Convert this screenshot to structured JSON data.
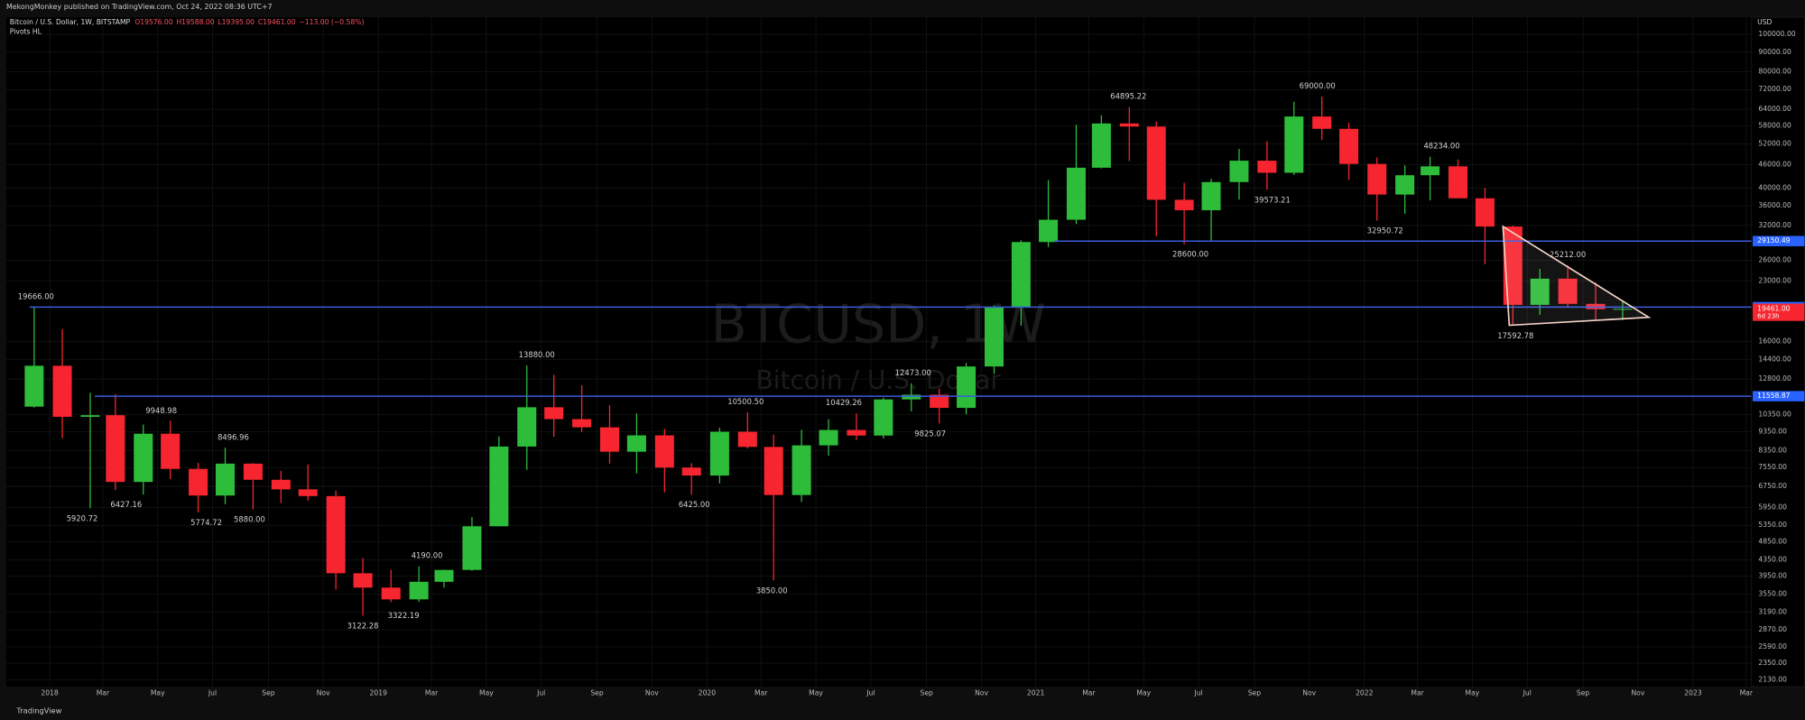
{
  "header": {
    "publisher": "MekongMonkey published on TradingView.com, Oct 24, 2022 08:36 UTC+7",
    "footer": "TradingView"
  },
  "chart_data": {
    "type": "candlestick",
    "title": "Bitcoin / U.S. Dollar, 1W, BITSTAMP",
    "ohlc_legend": [
      "O19576.00",
      "H19588.00",
      "L19395.00",
      "C19461.00",
      "−113.00 (−0.58%)"
    ],
    "indicator": "Pivots HL",
    "watermark": "BTCUSD, 1W",
    "watermark_subtitle": "Bitcoin / U.S. Dollar",
    "y_axis_label": "USD",
    "log_scale": true,
    "grid": true,
    "up_color": "#2ebd3a",
    "down_color": "#f7252f",
    "xlim": [
      "2017-11-14",
      "2023-03-07"
    ],
    "xticks": [
      {
        "value": "2018-01-01",
        "label": "2018"
      },
      {
        "value": "2018-03-01",
        "label": "Mar"
      },
      {
        "value": "2018-05-01",
        "label": "May"
      },
      {
        "value": "2018-07-01",
        "label": "Jul"
      },
      {
        "value": "2018-09-01",
        "label": "Sep"
      },
      {
        "value": "2018-11-01",
        "label": "Nov"
      },
      {
        "value": "2019-01-01",
        "label": "2019"
      },
      {
        "value": "2019-03-01",
        "label": "Mar"
      },
      {
        "value": "2019-05-01",
        "label": "May"
      },
      {
        "value": "2019-07-01",
        "label": "Jul"
      },
      {
        "value": "2019-09-01",
        "label": "Sep"
      },
      {
        "value": "2019-11-01",
        "label": "Nov"
      },
      {
        "value": "2020-01-01",
        "label": "2020"
      },
      {
        "value": "2020-03-01",
        "label": "Mar"
      },
      {
        "value": "2020-05-01",
        "label": "May"
      },
      {
        "value": "2020-07-01",
        "label": "Jul"
      },
      {
        "value": "2020-09-01",
        "label": "Sep"
      },
      {
        "value": "2020-11-01",
        "label": "Nov"
      },
      {
        "value": "2021-01-01",
        "label": "2021"
      },
      {
        "value": "2021-03-01",
        "label": "Mar"
      },
      {
        "value": "2021-05-01",
        "label": "May"
      },
      {
        "value": "2021-07-01",
        "label": "Jul"
      },
      {
        "value": "2021-09-01",
        "label": "Sep"
      },
      {
        "value": "2021-11-01",
        "label": "Nov"
      },
      {
        "value": "2022-01-01",
        "label": "2022"
      },
      {
        "value": "2022-03-01",
        "label": "Mar"
      },
      {
        "value": "2022-05-01",
        "label": "May"
      },
      {
        "value": "2022-07-01",
        "label": "Jul"
      },
      {
        "value": "2022-09-01",
        "label": "Sep"
      },
      {
        "value": "2022-11-01",
        "label": "Nov"
      },
      {
        "value": "2023-01-01",
        "label": "2023"
      },
      {
        "value": "2023-03-01",
        "label": "Mar"
      }
    ],
    "ylim": [
      2044,
      110800
    ],
    "yticks": [
      {
        "value": 100000,
        "label": "100000.00"
      },
      {
        "value": 90000,
        "label": "90000.00"
      },
      {
        "value": 80000,
        "label": "80000.00"
      },
      {
        "value": 72000,
        "label": "72000.00"
      },
      {
        "value": 64000,
        "label": "64000.00"
      },
      {
        "value": 58000,
        "label": "58000.00"
      },
      {
        "value": 52000,
        "label": "52000.00"
      },
      {
        "value": 46000,
        "label": "46000.00"
      },
      {
        "value": 40000,
        "label": "40000.00"
      },
      {
        "value": 36000,
        "label": "36000.00"
      },
      {
        "value": 32000,
        "label": "32000.00"
      },
      {
        "value": 26000,
        "label": "26000.00"
      },
      {
        "value": 23000,
        "label": "23000.00"
      },
      {
        "value": 16000,
        "label": "16000.00"
      },
      {
        "value": 14400,
        "label": "14400.00"
      },
      {
        "value": 12800,
        "label": "12800.00"
      },
      {
        "value": 10350,
        "label": "10350.00"
      },
      {
        "value": 9350,
        "label": "9350.00"
      },
      {
        "value": 8350,
        "label": "8350.00"
      },
      {
        "value": 7550,
        "label": "7550.00"
      },
      {
        "value": 6750,
        "label": "6750.00"
      },
      {
        "value": 5950,
        "label": "5950.00"
      },
      {
        "value": 5350,
        "label": "5350.00"
      },
      {
        "value": 4850,
        "label": "4850.00"
      },
      {
        "value": 4350,
        "label": "4350.00"
      },
      {
        "value": 3950,
        "label": "3950.00"
      },
      {
        "value": 3550,
        "label": "3550.00"
      },
      {
        "value": 3190,
        "label": "3190.00"
      },
      {
        "value": 2870,
        "label": "2870.00"
      },
      {
        "value": 2590,
        "label": "2590.00"
      },
      {
        "value": 2350,
        "label": "2350.00"
      },
      {
        "value": 2130,
        "label": "2130.00"
      }
    ],
    "x": [
      "2017-12",
      "2018-01",
      "2018-02",
      "2018-03",
      "2018-04",
      "2018-05",
      "2018-06",
      "2018-07",
      "2018-08",
      "2018-09",
      "2018-10",
      "2018-11",
      "2018-12",
      "2019-01",
      "2019-02",
      "2019-03",
      "2019-04",
      "2019-05",
      "2019-06",
      "2019-07",
      "2019-08",
      "2019-09",
      "2019-10",
      "2019-11",
      "2019-12",
      "2020-01",
      "2020-02",
      "2020-03",
      "2020-04",
      "2020-05",
      "2020-06",
      "2020-07",
      "2020-08",
      "2020-09",
      "2020-10",
      "2020-11",
      "2020-12",
      "2021-01",
      "2021-02",
      "2021-03",
      "2021-04",
      "2021-05",
      "2021-06",
      "2021-07",
      "2021-08",
      "2021-09",
      "2021-10",
      "2021-11",
      "2021-12",
      "2022-01",
      "2022-02",
      "2022-03",
      "2022-04",
      "2022-05",
      "2022-06",
      "2022-07",
      "2022-08",
      "2022-09",
      "2022-10"
    ],
    "open": [
      10860,
      13860,
      10220,
      10320,
      6930,
      9240,
      7490,
      6390,
      7730,
      7020,
      6630,
      6370,
      4020,
      3690,
      3440,
      3820,
      4100,
      5320,
      8560,
      10820,
      10080,
      9600,
      8300,
      9150,
      7550,
      7200,
      9350,
      8540,
      6410,
      8620,
      9450,
      9140,
      11340,
      11660,
      10780,
      13800,
      19700,
      28990,
      33110,
      45160,
      58800,
      57720,
      37300,
      35040,
      41460,
      47100,
      43820,
      61300,
      56950,
      46200,
      38480,
      43180,
      45530,
      37630,
      31790,
      19930,
      23300,
      20050,
      19420
    ],
    "high": [
      19666,
      17250,
      11790,
      11700,
      9760,
      9990,
      7770,
      8500,
      7750,
      7400,
      7690,
      6580,
      4400,
      4100,
      4190,
      4110,
      5620,
      9090,
      13880,
      13150,
      12330,
      10950,
      10430,
      9510,
      7750,
      9570,
      10500,
      9190,
      9460,
      10080,
      10430,
      11450,
      12473,
      12090,
      14100,
      19900,
      29300,
      41950,
      58350,
      61790,
      64895,
      59500,
      41300,
      42300,
      50500,
      52900,
      66900,
      69000,
      59050,
      47990,
      45800,
      48234,
      47440,
      39980,
      31980,
      24680,
      25212,
      22790,
      20480
    ],
    "low": [
      10800,
      9000,
      5920,
      6600,
      6430,
      7050,
      5780,
      6070,
      5880,
      6110,
      6200,
      3650,
      3122,
      3380,
      3390,
      3690,
      4080,
      5330,
      7450,
      9070,
      9330,
      7730,
      7300,
      6510,
      6425,
      6870,
      8460,
      3850,
      6150,
      8100,
      8900,
      8980,
      10550,
      9825,
      10380,
      13200,
      17600,
      28130,
      32300,
      45000,
      47000,
      30000,
      28600,
      29280,
      37330,
      39573,
      43280,
      53250,
      42000,
      32950,
      34320,
      37160,
      37700,
      25400,
      17592,
      18780,
      19600,
      18150,
      18190
    ],
    "close": [
      13860,
      10220,
      10320,
      6930,
      9240,
      7490,
      6390,
      7730,
      7020,
      6630,
      6370,
      4020,
      3690,
      3440,
      3820,
      4100,
      5320,
      8560,
      10820,
      10080,
      9600,
      8300,
      9150,
      7550,
      7200,
      9350,
      8540,
      6410,
      8620,
      9450,
      9140,
      11340,
      11660,
      10780,
      13800,
      19700,
      28990,
      33110,
      45160,
      58800,
      57720,
      37300,
      35040,
      41460,
      47100,
      43820,
      61300,
      56950,
      46200,
      38480,
      43180,
      45530,
      37630,
      31790,
      19930,
      23300,
      20050,
      19420,
      19461
    ],
    "pivots": [
      {
        "x": "2017-12-17",
        "value": 19666,
        "label": "19666.00",
        "kind": "high"
      },
      {
        "x": "2018-02-06",
        "value": 5920.72,
        "label": "5920.72",
        "kind": "low"
      },
      {
        "x": "2018-05-05",
        "value": 9948.98,
        "label": "9948.98",
        "kind": "high"
      },
      {
        "x": "2018-03-27",
        "value": 6427.16,
        "label": "6427.16",
        "kind": "low"
      },
      {
        "x": "2018-07-24",
        "value": 8496.96,
        "label": "8496.96",
        "kind": "high"
      },
      {
        "x": "2018-06-24",
        "value": 5774.72,
        "label": "5774.72",
        "kind": "low"
      },
      {
        "x": "2018-08-11",
        "value": 5880,
        "label": "5880.00",
        "kind": "low"
      },
      {
        "x": "2018-12-15",
        "value": 3122.28,
        "label": "3122.28",
        "kind": "low"
      },
      {
        "x": "2019-02-24",
        "value": 4190,
        "label": "4190.00",
        "kind": "high"
      },
      {
        "x": "2019-01-29",
        "value": 3322.19,
        "label": "3322.19",
        "kind": "low"
      },
      {
        "x": "2019-06-26",
        "value": 13880,
        "label": "13880.00",
        "kind": "high"
      },
      {
        "x": "2020-02-13",
        "value": 10500.5,
        "label": "10500.50",
        "kind": "high"
      },
      {
        "x": "2019-12-18",
        "value": 6425,
        "label": "6425.00",
        "kind": "low"
      },
      {
        "x": "2020-03-13",
        "value": 3850,
        "label": "3850.00",
        "kind": "low"
      },
      {
        "x": "2020-06-01",
        "value": 10429.26,
        "label": "10429.26",
        "kind": "high"
      },
      {
        "x": "2020-08-17",
        "value": 12473,
        "label": "12473.00",
        "kind": "high"
      },
      {
        "x": "2020-09-05",
        "value": 9825.07,
        "label": "9825.07",
        "kind": "low"
      },
      {
        "x": "2021-04-14",
        "value": 64895.22,
        "label": "64895.22",
        "kind": "high"
      },
      {
        "x": "2021-06-22",
        "value": 28600,
        "label": "28600.00",
        "kind": "low"
      },
      {
        "x": "2021-09-21",
        "value": 39573.21,
        "label": "39573.21",
        "kind": "low"
      },
      {
        "x": "2021-11-10",
        "value": 69000,
        "label": "69000.00",
        "kind": "high"
      },
      {
        "x": "2022-01-24",
        "value": 32950.72,
        "label": "32950.72",
        "kind": "low"
      },
      {
        "x": "2022-03-28",
        "value": 48234,
        "label": "48234.00",
        "kind": "high"
      },
      {
        "x": "2022-06-18",
        "value": 17592.78,
        "label": "17592.78",
        "kind": "low"
      },
      {
        "x": "2022-08-15",
        "value": 25212,
        "label": "25212.00",
        "kind": "high"
      }
    ],
    "hlines": [
      {
        "from": "2021-01-22",
        "value": 29150.49,
        "label": "29150.49",
        "color": "#3b5bdb"
      },
      {
        "from": "2017-12-10",
        "value": 19666,
        "label": "19666.00",
        "color": "#3b5bdb"
      },
      {
        "from": "2018-02-20",
        "value": 11558.87,
        "label": "11558.87",
        "color": "#3b5bdb"
      }
    ],
    "last_price": {
      "value": 19461,
      "label": "19461.00",
      "countdown": "6d 23h",
      "color": "#f7252f"
    },
    "triangle": {
      "x": [
        "2022-06-04",
        "2022-11-13",
        "2022-06-11"
      ],
      "y": [
        31800,
        18500,
        17640
      ]
    }
  }
}
